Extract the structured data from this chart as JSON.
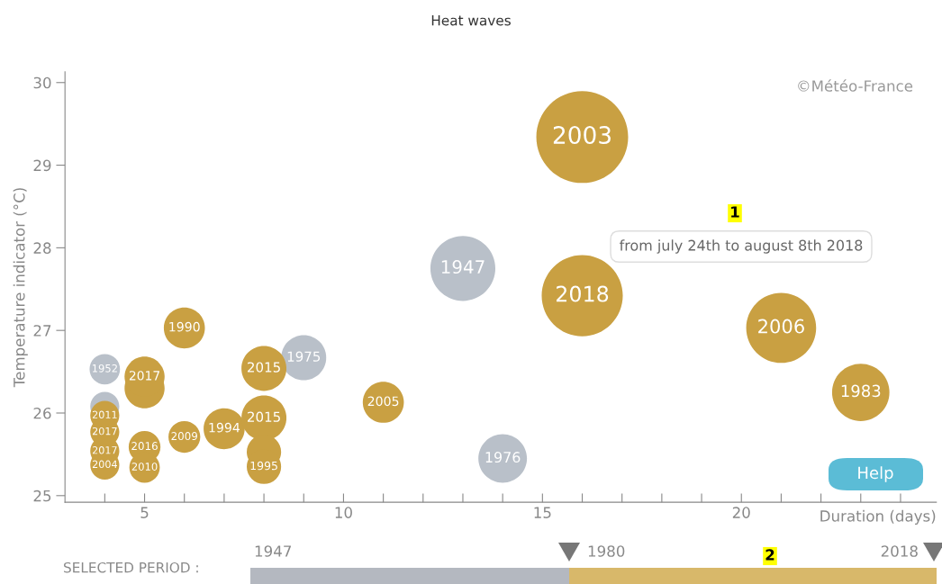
{
  "chart_data": {
    "type": "bubble",
    "title": "Heat waves",
    "xlabel": "Duration (days)",
    "ylabel": "Temperature indicator (°C)",
    "xlim": [
      3,
      24.9
    ],
    "ylim": [
      24.92,
      30.13
    ],
    "xticks": [
      {
        "value": 4,
        "label": null
      },
      5,
      {
        "value": 6,
        "label": null
      },
      {
        "value": 7,
        "label": null
      },
      {
        "value": 8,
        "label": null
      },
      {
        "value": 9,
        "label": null
      },
      10,
      {
        "value": 11,
        "label": null
      },
      {
        "value": 12,
        "label": null
      },
      {
        "value": 13,
        "label": null
      },
      {
        "value": 14,
        "label": null
      },
      15,
      {
        "value": 16,
        "label": null
      },
      {
        "value": 17,
        "label": null
      },
      {
        "value": 18,
        "label": null
      },
      {
        "value": 19,
        "label": null
      },
      20,
      {
        "value": 21,
        "label": null
      },
      {
        "value": 22,
        "label": null
      },
      {
        "value": 23,
        "label": null
      },
      {
        "value": 24,
        "label": null
      }
    ],
    "yticks": [
      25,
      26,
      27,
      28,
      29,
      30
    ],
    "grid": false,
    "legend": false,
    "series": [
      {
        "color": "#b9c0c9",
        "x": [
          4,
          4,
          9,
          13,
          14
        ],
        "values": [
          26.53,
          26.08,
          26.67,
          27.75,
          25.45
        ],
        "sizes": [
          0.11,
          0.1,
          0.24,
          0.5,
          0.28
        ]
      },
      {
        "color": "#c9a042",
        "x": [
          4,
          4,
          4,
          4,
          5,
          5,
          5,
          5,
          6,
          6,
          7,
          8,
          8,
          8,
          8,
          11,
          16,
          16,
          21,
          23
        ],
        "values": [
          25.97,
          25.77,
          25.54,
          25.37,
          26.3,
          26.44,
          25.59,
          25.34,
          25.71,
          27.03,
          25.81,
          26.54,
          25.94,
          25.53,
          25.35,
          26.13,
          29.34,
          27.42,
          27.03,
          26.25
        ],
        "sizes": [
          0.1,
          0.1,
          0.1,
          0.1,
          0.19,
          0.19,
          0.12,
          0.11,
          0.12,
          0.2,
          0.2,
          0.24,
          0.24,
          0.14,
          0.14,
          0.2,
          1,
          0.78,
          0.58,
          0.39
        ]
      }
    ],
    "annotations": [
      {
        "text": "1952",
        "x": 4,
        "y": 26.53
      },
      {
        "text": "1975",
        "x": 9,
        "y": 26.67
      },
      {
        "text": "1947",
        "x": 13,
        "y": 27.75
      },
      {
        "text": "1976",
        "x": 14,
        "y": 25.45
      },
      {
        "text": "2011",
        "x": 4,
        "y": 25.97
      },
      {
        "text": "2017",
        "x": 4,
        "y": 25.77
      },
      {
        "text": "2017",
        "x": 4,
        "y": 25.54
      },
      {
        "text": "2004",
        "x": 4,
        "y": 25.37
      },
      {
        "text": "2017",
        "x": 5,
        "y": 26.44
      },
      {
        "text": "2016",
        "x": 5,
        "y": 25.59
      },
      {
        "text": "2010",
        "x": 5,
        "y": 25.34
      },
      {
        "text": "2009",
        "x": 6,
        "y": 25.71
      },
      {
        "text": "1990",
        "x": 6,
        "y": 27.03
      },
      {
        "text": "1994",
        "x": 7,
        "y": 25.81
      },
      {
        "text": "2015",
        "x": 8,
        "y": 26.54
      },
      {
        "text": "2015",
        "x": 8,
        "y": 25.94
      },
      {
        "text": "1995",
        "x": 8,
        "y": 25.35
      },
      {
        "text": "2005",
        "x": 11,
        "y": 26.13
      },
      {
        "text": "2003",
        "x": 16,
        "y": 29.34
      },
      {
        "text": "2018",
        "x": 16,
        "y": 27.42
      },
      {
        "text": "2006",
        "x": 21,
        "y": 27.03
      },
      {
        "text": "1983",
        "x": 23,
        "y": 26.25
      },
      "©Météo-France",
      "from july 24th to august 8th 2018",
      "1",
      "Help",
      "SELECTED PERIOD :",
      "1947",
      "1980",
      "2018",
      "2"
    ]
  }
}
